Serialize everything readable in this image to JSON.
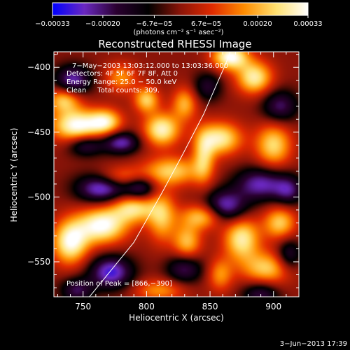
{
  "chart_data": {
    "type": "heatmap",
    "title": "Reconstructed RHESSI Image",
    "xlabel": "Heliocentric X (arcsec)",
    "ylabel": "Heliocentric Y (arcsec)",
    "xlim": [
      727,
      920
    ],
    "ylim": [
      -577,
      -388
    ],
    "x_ticks": [
      750,
      800,
      850,
      900
    ],
    "y_ticks": [
      -400,
      -450,
      -500,
      -550
    ],
    "x_tick_labels": [
      "750",
      "800",
      "850",
      "900"
    ],
    "y_tick_labels": [
      "−400",
      "−450",
      "−500",
      "−550"
    ],
    "colorbar": {
      "range": [
        -0.00033,
        0.00033
      ],
      "tick_values": [
        -0.00033,
        -0.0002,
        -6.7e-05,
        6.7e-05,
        0.0002,
        0.00033
      ],
      "tick_labels": [
        "−0.00033",
        "−0.00020",
        "−6.7e−05",
        "6.7e−05",
        "0.00020",
        "0.00033"
      ],
      "unit_label": "(photons cm⁻² s⁻¹ asec⁻²)",
      "colors": [
        "#0000ff",
        "#6a28c0",
        "#2a0030",
        "#000000",
        "#8a1408",
        "#e02a00",
        "#ff8c00",
        "#ffe070",
        "#ffffff"
      ]
    },
    "annotations": [
      "7−May−2003 13:03:12.000 to 13:03:36.000",
      "Detectors: 4F 5F 6F 7F 8F, Att 0",
      "Energy Range: 25.0 − 50.0 keV",
      "Clean     Total counts: 309."
    ],
    "peak_label": "Position of Peak = [866,−390]",
    "limb_line": [
      [
        755,
        -577
      ],
      [
        790,
        -535
      ],
      [
        812,
        -497
      ],
      [
        828,
        -468
      ],
      [
        845,
        -436
      ],
      [
        862,
        -398
      ],
      [
        866,
        -388
      ]
    ],
    "blobs": [
      {
        "x": 745,
        "y": -445,
        "sx": 14,
        "sy": 9,
        "v": 1.0
      },
      {
        "x": 735,
        "y": -425,
        "sx": 9,
        "sy": 7,
        "v": 0.7
      },
      {
        "x": 768,
        "y": -442,
        "sx": 9,
        "sy": 7,
        "v": 0.75
      },
      {
        "x": 780,
        "y": -408,
        "sx": 9,
        "sy": 8,
        "v": 0.5
      },
      {
        "x": 800,
        "y": -425,
        "sx": 7,
        "sy": 7,
        "v": 0.7
      },
      {
        "x": 812,
        "y": -448,
        "sx": 10,
        "sy": 9,
        "v": 0.9
      },
      {
        "x": 830,
        "y": -428,
        "sx": 7,
        "sy": 9,
        "v": 0.6
      },
      {
        "x": 866,
        "y": -392,
        "sx": 10,
        "sy": 7,
        "v": 1.0
      },
      {
        "x": 885,
        "y": -408,
        "sx": 10,
        "sy": 9,
        "v": 0.85
      },
      {
        "x": 858,
        "y": -455,
        "sx": 12,
        "sy": 9,
        "v": 0.85
      },
      {
        "x": 900,
        "y": -460,
        "sx": 10,
        "sy": 12,
        "v": 0.75
      },
      {
        "x": 845,
        "y": -470,
        "sx": 6,
        "sy": 14,
        "v": 0.6
      },
      {
        "x": 820,
        "y": -480,
        "sx": 16,
        "sy": 8,
        "v": 0.7
      },
      {
        "x": 780,
        "y": -485,
        "sx": 14,
        "sy": 6,
        "v": 0.55
      },
      {
        "x": 790,
        "y": -508,
        "sx": 12,
        "sy": 8,
        "v": 0.8
      },
      {
        "x": 765,
        "y": -522,
        "sx": 14,
        "sy": 10,
        "v": 1.0
      },
      {
        "x": 740,
        "y": -535,
        "sx": 10,
        "sy": 12,
        "v": 0.95
      },
      {
        "x": 812,
        "y": -515,
        "sx": 8,
        "sy": 14,
        "v": 0.65
      },
      {
        "x": 832,
        "y": -535,
        "sx": 8,
        "sy": 10,
        "v": 0.65
      },
      {
        "x": 845,
        "y": -515,
        "sx": 12,
        "sy": 7,
        "v": 0.75
      },
      {
        "x": 875,
        "y": -532,
        "sx": 10,
        "sy": 12,
        "v": 0.85
      },
      {
        "x": 905,
        "y": -520,
        "sx": 9,
        "sy": 9,
        "v": 0.7
      },
      {
        "x": 895,
        "y": -555,
        "sx": 14,
        "sy": 9,
        "v": 0.7
      },
      {
        "x": 858,
        "y": -560,
        "sx": 7,
        "sy": 9,
        "v": 0.5
      },
      {
        "x": 810,
        "y": -572,
        "sx": 14,
        "sy": 6,
        "v": 0.5
      },
      {
        "x": 780,
        "y": -458,
        "sx": 10,
        "sy": 6,
        "v": -0.75
      },
      {
        "x": 752,
        "y": -460,
        "sx": 10,
        "sy": 6,
        "v": -0.6
      },
      {
        "x": 742,
        "y": -410,
        "sx": 10,
        "sy": 8,
        "v": -0.75
      },
      {
        "x": 765,
        "y": -493,
        "sx": 14,
        "sy": 8,
        "v": -0.9
      },
      {
        "x": 795,
        "y": -493,
        "sx": 9,
        "sy": 7,
        "v": -0.7
      },
      {
        "x": 772,
        "y": -558,
        "sx": 12,
        "sy": 9,
        "v": -0.85
      },
      {
        "x": 745,
        "y": -572,
        "sx": 9,
        "sy": 7,
        "v": -0.55
      },
      {
        "x": 830,
        "y": -555,
        "sx": 10,
        "sy": 8,
        "v": -0.6
      },
      {
        "x": 862,
        "y": -508,
        "sx": 12,
        "sy": 9,
        "v": -0.85
      },
      {
        "x": 890,
        "y": -490,
        "sx": 14,
        "sy": 9,
        "v": -0.75
      },
      {
        "x": 912,
        "y": -495,
        "sx": 8,
        "sy": 8,
        "v": -0.55
      },
      {
        "x": 905,
        "y": -430,
        "sx": 10,
        "sy": 9,
        "v": -0.6
      },
      {
        "x": 890,
        "y": -575,
        "sx": 10,
        "sy": 7,
        "v": -0.55
      },
      {
        "x": 848,
        "y": -415,
        "sx": 8,
        "sy": 8,
        "v": -0.45
      },
      {
        "x": 912,
        "y": -545,
        "sx": 7,
        "sy": 9,
        "v": -0.55
      }
    ]
  },
  "footer": {
    "date": "3−Jun−2013 17:39"
  }
}
